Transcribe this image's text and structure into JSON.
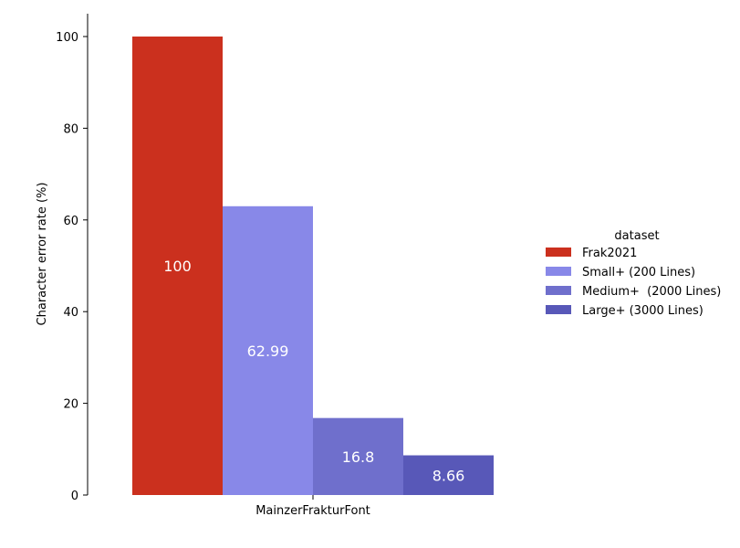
{
  "chart_data": {
    "type": "bar",
    "categories": [
      "MainzerFrakturFont"
    ],
    "xlabel": "",
    "ylabel": "Character error rate (%)",
    "ylim": [
      0,
      105
    ],
    "yticks": [
      0,
      20,
      40,
      60,
      80,
      100
    ],
    "legend": {
      "title": "dataset",
      "placement": "right"
    },
    "grid": false,
    "series": [
      {
        "name": "Frak2021",
        "values": [
          100
        ],
        "label": "100",
        "color": "#cb301e"
      },
      {
        "name": "Small+ (200 Lines)",
        "values": [
          62.99
        ],
        "label": "62.99",
        "color": "#8888e8"
      },
      {
        "name": "Medium+  (2000 Lines)",
        "values": [
          16.8
        ],
        "label": "16.8",
        "color": "#6f6fcc"
      },
      {
        "name": "Large+ (3000 Lines)",
        "values": [
          8.66
        ],
        "label": "8.66",
        "color": "#5858b8"
      }
    ]
  }
}
